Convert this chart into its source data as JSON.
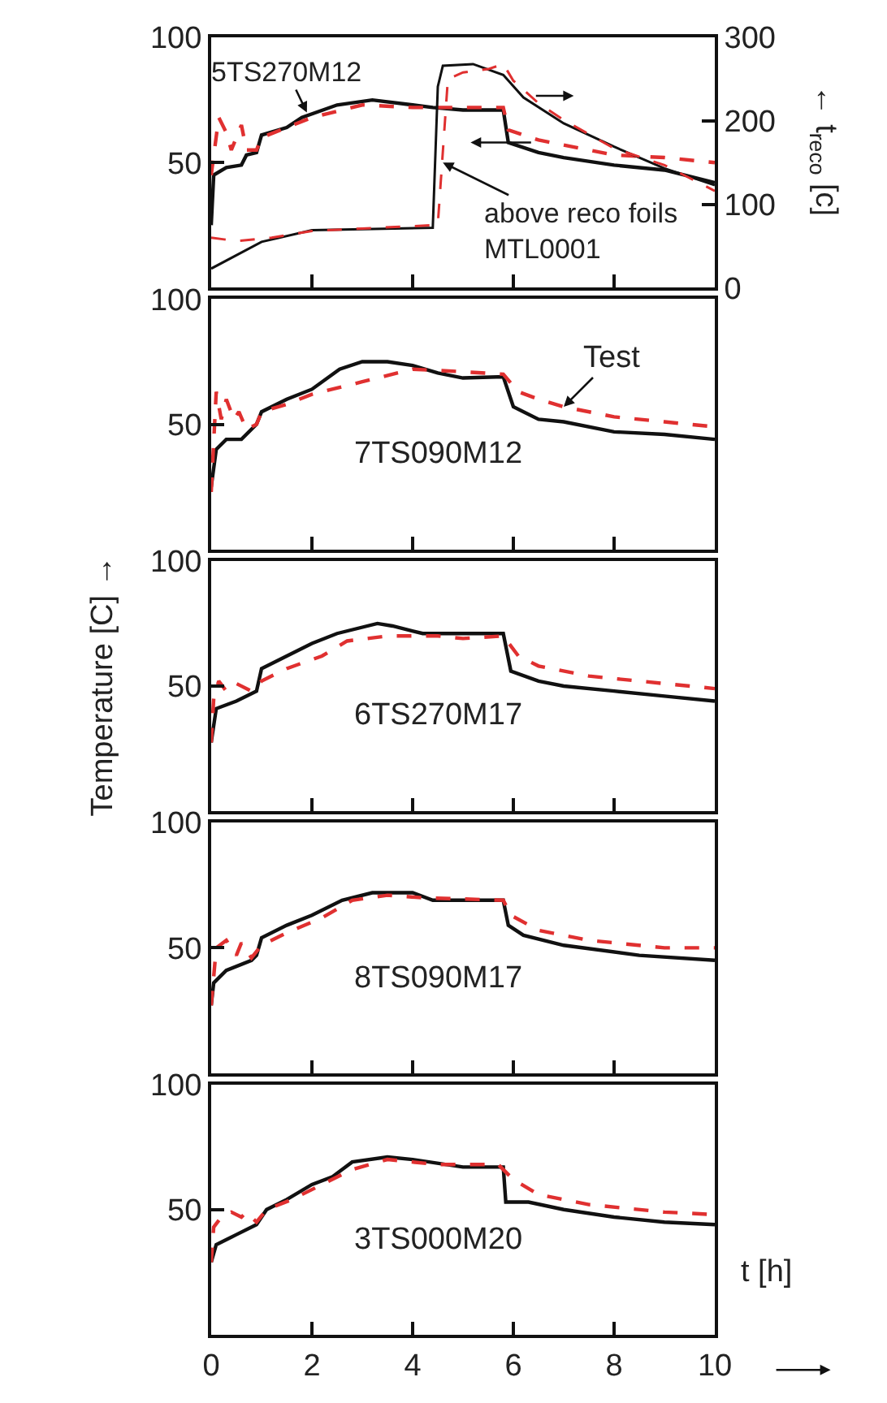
{
  "chart_data": [
    {
      "type": "line",
      "xlim": [
        0,
        10
      ],
      "xticks": [
        0,
        2,
        4,
        6,
        8,
        10
      ],
      "ylim": [
        0,
        100
      ],
      "yticks": [
        50,
        100
      ],
      "y2lim": [
        0,
        300
      ],
      "y2ticks": [
        0,
        100,
        200,
        300
      ],
      "y2label": "← t$_{reco}$ [c]",
      "tick_labels": "y",
      "annotations": [
        {
          "text": "5TS270M12",
          "x": 1.9,
          "y": 70
        },
        {
          "text": "above reco foils\nMTL0001",
          "x": 4.6,
          "y": 50
        }
      ],
      "series": [
        {
          "color": "#111111",
          "line_style": "solid",
          "x": [
            0,
            0.05,
            0.3,
            0.6,
            0.7,
            0.9,
            1.0,
            1.5,
            1.8,
            2.5,
            3.2,
            4.0,
            4.4,
            5.0,
            5.8,
            5.9,
            6.5,
            7.0,
            8.0,
            9.0,
            10.0
          ],
          "values": [
            25,
            45,
            48,
            49,
            53,
            54,
            61,
            64,
            68,
            73,
            75,
            73,
            72,
            71,
            71,
            58,
            54,
            52,
            49,
            47,
            42
          ]
        },
        {
          "color": "#e03030",
          "line_style": "dashed",
          "x": [
            0,
            0.15,
            0.3,
            0.4,
            0.6,
            0.7,
            0.9,
            1.0,
            1.5,
            2.0,
            3.0,
            4.0,
            5.0,
            5.8,
            5.9,
            6.5,
            7.0,
            8.0,
            9.0,
            10.0
          ],
          "values": [
            45,
            68,
            62,
            55,
            65,
            55,
            55,
            60,
            64,
            68,
            73,
            72,
            72,
            72,
            63,
            59,
            57,
            53,
            52,
            50
          ]
        },
        {
          "color": "#111111",
          "line_style": "solid",
          "axis": "y2",
          "x": [
            0,
            1.0,
            2.0,
            4.4,
            4.5,
            4.6,
            5.2,
            5.8,
            6.2,
            7.0,
            8.0,
            9.0,
            10.0
          ],
          "values": [
            23,
            55,
            69,
            72,
            241,
            266,
            268,
            255,
            228,
            197,
            169,
            143,
            123
          ]
        },
        {
          "color": "#e03030",
          "line_style": "dashed",
          "axis": "y2",
          "x": [
            0,
            0.5,
            1.2,
            2.0,
            3.0,
            4.4,
            4.5,
            4.7,
            5.0,
            5.5,
            5.8,
            6.0,
            6.5,
            7.0,
            8.0,
            9.0,
            10.0
          ],
          "values": [
            60,
            56,
            60,
            68,
            71,
            75,
            76,
            250,
            258,
            262,
            268,
            248,
            221,
            201,
            167,
            147,
            116
          ]
        }
      ]
    },
    {
      "type": "line",
      "xlim": [
        0,
        10
      ],
      "xticks": [
        0,
        2,
        4,
        6,
        8,
        10
      ],
      "ylim": [
        0,
        100
      ],
      "yticks": [
        50,
        100
      ],
      "tick_labels": "y",
      "annotations": [
        "7TS090M12",
        {
          "text": "Test",
          "x": 7,
          "y": 57
        }
      ],
      "series": [
        {
          "color": "#111111",
          "line_style": "solid",
          "x": [
            0,
            0.1,
            0.3,
            0.6,
            0.9,
            1.0,
            1.5,
            2.0,
            2.55,
            3.0,
            3.5,
            4.0,
            4.5,
            5.0,
            5.8,
            6.0,
            6.5,
            7.0,
            8.0,
            9.0,
            10.0
          ],
          "values": [
            25,
            40,
            44,
            44,
            50,
            55,
            60,
            64,
            72,
            75,
            75,
            73.5,
            70.5,
            68.5,
            69,
            57,
            52,
            51,
            47,
            46,
            44
          ]
        },
        {
          "color": "#e03030",
          "line_style": "dashed",
          "x": [
            0,
            0.1,
            0.2,
            0.3,
            0.45,
            0.55,
            0.7,
            0.9,
            1.0,
            1.5,
            2.0,
            3.0,
            4.0,
            5.0,
            5.8,
            6.1,
            6.5,
            7.0,
            8.0,
            9.0,
            10.0
          ],
          "values": [
            23,
            63,
            52,
            60,
            52,
            55,
            48,
            50,
            55,
            58,
            62,
            67,
            72,
            71,
            70,
            63,
            60,
            57,
            53,
            51,
            49
          ]
        }
      ]
    },
    {
      "type": "line",
      "xlim": [
        0,
        10
      ],
      "xticks": [
        0,
        2,
        4,
        6,
        8,
        10
      ],
      "ylim": [
        0,
        100
      ],
      "yticks": [
        50,
        100
      ],
      "ylabel": "Temperature [C] →",
      "tick_labels": "y",
      "annotations": [
        "6TS270M17"
      ],
      "series": [
        {
          "color": "#111111",
          "line_style": "solid",
          "x": [
            0,
            0.1,
            0.5,
            0.9,
            1.0,
            1.5,
            2.0,
            2.5,
            3.3,
            3.6,
            4.2,
            5.8,
            5.95,
            6.5,
            7.0,
            8.0,
            9.0,
            10.0
          ],
          "values": [
            27.5,
            41,
            44,
            48,
            57,
            62,
            67,
            71,
            75,
            74,
            71,
            71,
            56,
            52,
            50,
            48,
            46,
            44
          ]
        },
        {
          "color": "#e03030",
          "line_style": "dashed",
          "x": [
            0,
            0.05,
            0.15,
            0.3,
            0.5,
            0.8,
            1.0,
            1.5,
            2.2,
            2.7,
            3.5,
            4.5,
            5.0,
            5.8,
            6.1,
            6.5,
            7.5,
            9.0,
            10.0
          ],
          "values": [
            27.5,
            45,
            52,
            48,
            51,
            48,
            52,
            57,
            62,
            68,
            70,
            70,
            69,
            70,
            62,
            58,
            54,
            51,
            49
          ]
        }
      ]
    },
    {
      "type": "line",
      "xlim": [
        0,
        10
      ],
      "xticks": [
        0,
        2,
        4,
        6,
        8,
        10
      ],
      "ylim": [
        0,
        100
      ],
      "yticks": [
        50,
        100
      ],
      "tick_labels": "y",
      "annotations": [
        "8TS090M17"
      ],
      "series": [
        {
          "color": "#111111",
          "line_style": "solid",
          "x": [
            0,
            0.05,
            0.3,
            0.8,
            0.9,
            1.0,
            1.5,
            2.0,
            2.6,
            3.2,
            4.0,
            4.4,
            5.8,
            5.9,
            6.2,
            7.0,
            8.5,
            10.0
          ],
          "values": [
            27,
            36,
            41,
            45,
            47,
            54,
            59,
            63,
            69,
            72,
            72,
            69,
            69,
            59,
            55,
            51,
            47,
            45
          ]
        },
        {
          "color": "#e03030",
          "line_style": "dashed",
          "x": [
            0,
            0.1,
            0.3,
            0.5,
            0.6,
            0.8,
            1.0,
            1.5,
            2.2,
            2.8,
            3.5,
            4.2,
            5.8,
            5.95,
            6.5,
            7.5,
            9.0,
            10.0
          ],
          "values": [
            27,
            50,
            53,
            47,
            52,
            46,
            51,
            56,
            62,
            69,
            71,
            70,
            69,
            63,
            57,
            53,
            50,
            50
          ]
        }
      ]
    },
    {
      "type": "line",
      "xlim": [
        0,
        10
      ],
      "xticks": [
        0,
        2,
        4,
        6,
        8,
        10
      ],
      "ylim": [
        0,
        100
      ],
      "yticks": [
        50,
        100
      ],
      "xlabel": "t [h]",
      "annotations": [
        "3TS000M20"
      ],
      "series": [
        {
          "color": "#111111",
          "line_style": "solid",
          "x": [
            0,
            0.1,
            0.5,
            0.9,
            1.1,
            1.5,
            2.0,
            2.4,
            2.8,
            3.5,
            4.0,
            5.0,
            5.8,
            5.85,
            6.3,
            7.0,
            8.0,
            9.0,
            10.0
          ],
          "values": [
            29,
            36,
            40,
            44,
            50,
            54,
            60,
            63,
            69,
            71,
            70,
            67,
            67,
            53,
            53,
            50,
            47,
            45,
            44
          ]
        },
        {
          "color": "#e03030",
          "line_style": "dashed",
          "x": [
            0,
            0.05,
            0.2,
            0.4,
            0.6,
            0.7,
            0.9,
            1.1,
            1.6,
            2.2,
            2.8,
            3.5,
            4.5,
            5.7,
            6.0,
            6.5,
            7.5,
            9.0,
            10.0
          ],
          "values": [
            29,
            43,
            47,
            49,
            47,
            49,
            45,
            50,
            54,
            60,
            66,
            70,
            68,
            68,
            62,
            56,
            52,
            49,
            48
          ]
        }
      ]
    }
  ]
}
